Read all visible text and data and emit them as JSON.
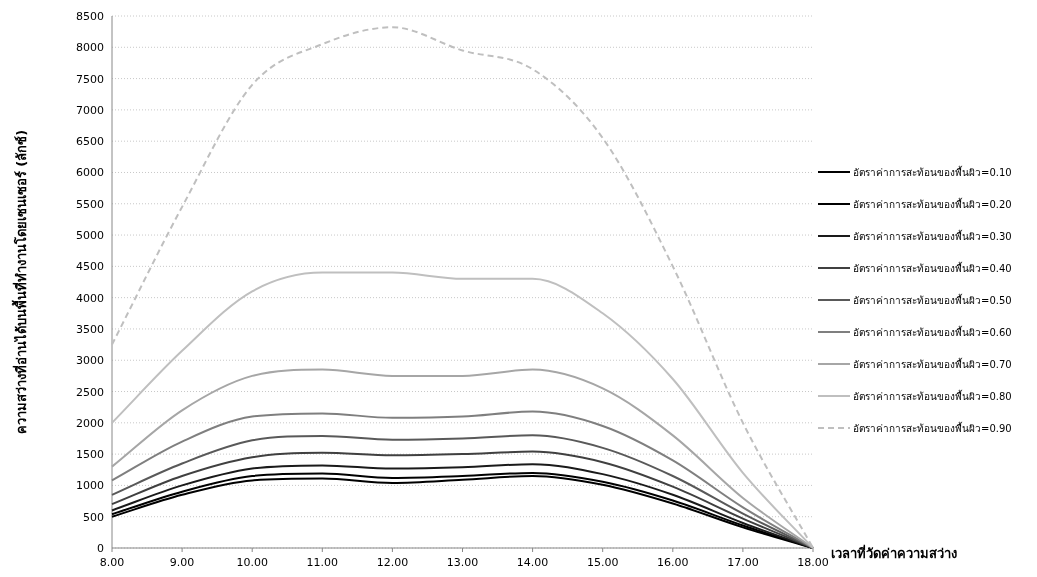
{
  "chart_data": {
    "type": "line",
    "ylabel": "ความสว่างที่อ่านได้บนพื้นที่ทำงานโดยเซนเซอร์ (ลักซ์)",
    "xlabel": "เวลาที่วัดค่าความสว่าง",
    "x": [
      8,
      9,
      10,
      11,
      12,
      13,
      14,
      15,
      16,
      17,
      18
    ],
    "xlim": [
      8,
      18
    ],
    "xticks": [
      {
        "value": 8,
        "label": "8.00"
      },
      {
        "value": 9,
        "label": "9.00"
      },
      {
        "value": 10,
        "label": "10.00"
      },
      {
        "value": 11,
        "label": "11.00"
      },
      {
        "value": 12,
        "label": "12.00"
      },
      {
        "value": 13,
        "label": "13.00"
      },
      {
        "value": 14,
        "label": "14.00"
      },
      {
        "value": 15,
        "label": "15.00"
      },
      {
        "value": 16,
        "label": "16.00"
      },
      {
        "value": 17,
        "label": "17.00"
      },
      {
        "value": 18,
        "label": "18.00"
      }
    ],
    "ylim": [
      0,
      8500
    ],
    "yticks": [
      0,
      500,
      1000,
      1500,
      2000,
      2500,
      3000,
      3500,
      4000,
      4500,
      5000,
      5500,
      6000,
      6500,
      7000,
      7500,
      8000,
      8500
    ],
    "grid": "y",
    "legend": "right",
    "marker": "none",
    "series": [
      {
        "name": "อัตราค่าการสะท้อนของพื้นผิว=0.10",
        "color": "#000000",
        "values": [
          500,
          850,
          1080,
          1110,
          1040,
          1090,
          1150,
          1010,
          710,
          330,
          0
        ]
      },
      {
        "name": "อัตราค่าการสะท้อนของพื้นผิว=0.20",
        "color": "#000000",
        "values": [
          540,
          900,
          1150,
          1190,
          1120,
          1150,
          1200,
          1060,
          760,
          360,
          0
        ]
      },
      {
        "name": "อัตราค่าการสะท้อนของพื้นผิว=0.30",
        "color": "#1a1a1a",
        "values": [
          600,
          1000,
          1270,
          1320,
          1270,
          1290,
          1340,
          1180,
          850,
          400,
          0
        ]
      },
      {
        "name": "อัตราค่าการสะท้อนของพื้นผิว=0.40",
        "color": "#404040",
        "values": [
          700,
          1150,
          1450,
          1520,
          1480,
          1500,
          1540,
          1370,
          980,
          470,
          0
        ]
      },
      {
        "name": "อัตราค่าการสะท้อนของพื้นผิว=0.50",
        "color": "#595959",
        "values": [
          850,
          1350,
          1720,
          1790,
          1730,
          1750,
          1800,
          1600,
          1150,
          550,
          0
        ]
      },
      {
        "name": "อัตราค่าการสะท้อนของพื้นผิว=0.60",
        "color": "#7f7f7f",
        "values": [
          1080,
          1700,
          2100,
          2150,
          2080,
          2100,
          2180,
          1950,
          1400,
          650,
          0
        ]
      },
      {
        "name": "อัตราค่าการสะท้อนของพื้นผิว=0.70",
        "color": "#a6a6a6",
        "values": [
          1300,
          2200,
          2750,
          2850,
          2750,
          2750,
          2850,
          2550,
          1800,
          800,
          0
        ]
      },
      {
        "name": "อัตราค่าการสะท้อนของพื้นผิว=0.80",
        "color": "#bfbfbf",
        "values": [
          2000,
          3150,
          4100,
          4400,
          4400,
          4300,
          4300,
          3750,
          2700,
          1200,
          0
        ]
      },
      {
        "name": "อัตราค่าการสะท้อนของพื้นผิว=0.90",
        "color": "#bfbfbf",
        "line_style": "dashed",
        "values": [
          3250,
          5450,
          7400,
          8050,
          8320,
          7950,
          7650,
          6550,
          4500,
          2000,
          0
        ]
      }
    ]
  }
}
